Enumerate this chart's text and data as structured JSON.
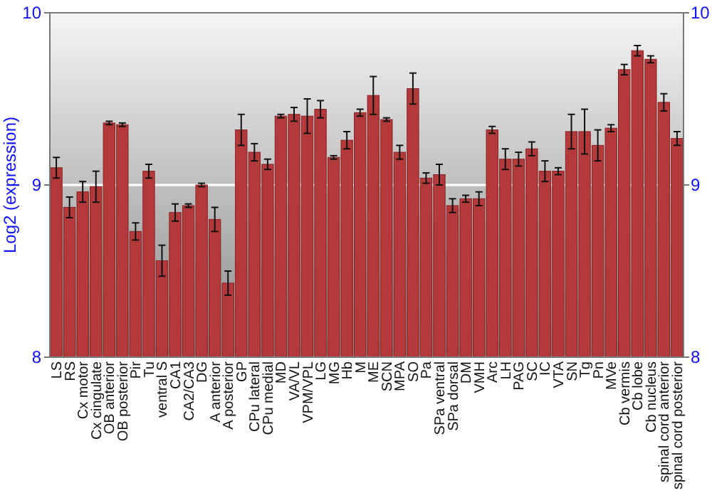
{
  "chart_data": {
    "type": "bar",
    "ylabel": "Log2 (expression)",
    "categories": [
      "LS",
      "RS",
      "Cx motor",
      "Cx cingulate",
      "OB anterior",
      "OB posterior",
      "Pir",
      "Tu",
      "ventral S",
      "CA1",
      "CA2/CA3",
      "DG",
      "A anterior",
      "A posterior",
      "GP",
      "CPu lateral",
      "CPu medial",
      "MD",
      "VA/VL",
      "VPM/VPL",
      "LG",
      "MG",
      "Hb",
      "M",
      "ME",
      "SCN",
      "MPA",
      "SO",
      "Pa",
      "SPa ventral",
      "SPa dorsal",
      "DM",
      "VMH",
      "Arc",
      "LH",
      "PAG",
      "SC",
      "IC",
      "VTA",
      "SN",
      "Tg",
      "Pn",
      "MVe",
      "Cb vermis",
      "Cb lobe",
      "Cb nucleus",
      "spinal cord anterior",
      "spinal cord posterior"
    ],
    "values": [
      9.1,
      8.87,
      8.96,
      8.99,
      9.36,
      9.35,
      8.73,
      9.08,
      8.56,
      8.84,
      8.88,
      9.0,
      8.8,
      8.43,
      9.32,
      9.19,
      9.12,
      9.4,
      9.41,
      9.4,
      9.44,
      9.16,
      9.26,
      9.42,
      9.52,
      9.38,
      9.19,
      9.56,
      9.04,
      9.06,
      8.88,
      8.92,
      8.92,
      9.32,
      9.15,
      9.15,
      9.21,
      9.08,
      9.08,
      9.31,
      9.31,
      9.23,
      9.33,
      9.67,
      9.78,
      9.73,
      9.48,
      9.27
    ],
    "errors": [
      0.06,
      0.06,
      0.06,
      0.09,
      0.01,
      0.01,
      0.05,
      0.04,
      0.09,
      0.05,
      0.01,
      0.01,
      0.07,
      0.07,
      0.09,
      0.05,
      0.03,
      0.01,
      0.04,
      0.1,
      0.05,
      0.01,
      0.05,
      0.02,
      0.11,
      0.01,
      0.04,
      0.09,
      0.03,
      0.06,
      0.04,
      0.02,
      0.04,
      0.02,
      0.06,
      0.04,
      0.04,
      0.06,
      0.02,
      0.1,
      0.13,
      0.09,
      0.02,
      0.03,
      0.03,
      0.02,
      0.05,
      0.04
    ],
    "color": "#b3393b",
    "ylim": [
      8,
      10
    ],
    "yticks": [
      8,
      9,
      10
    ],
    "y2lim": [
      8,
      10
    ],
    "y2ticks": [
      8,
      9,
      10
    ],
    "grid": "y"
  }
}
